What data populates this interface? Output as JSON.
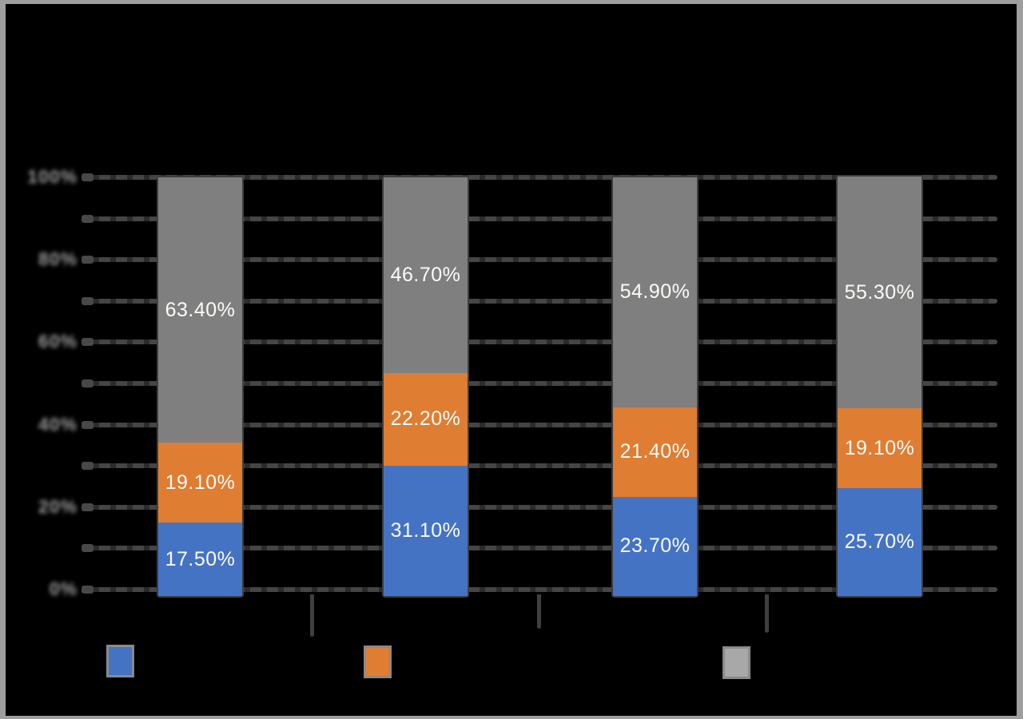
{
  "window": {
    "background": "#000000",
    "frame_border_color": "#9E9E9E"
  },
  "y_axis": {
    "tick_labels": [
      "100%",
      "80%",
      "60%",
      "40%",
      "20%",
      "0%"
    ],
    "min": 0,
    "max": 100,
    "label_unit_pct": 20,
    "gridline_unit_pct": 10,
    "labels_blurred": true
  },
  "x_axis": {
    "category_labels": [
      "",
      "",
      "",
      ""
    ],
    "tick_marks_between_categories": true
  },
  "legend": {
    "position": "bottom",
    "swatch_border_color": "#8A8A8A",
    "entries": [
      {
        "swatch_color": "#4573C4",
        "label": ""
      },
      {
        "swatch_color": "#DF7D33",
        "label": ""
      },
      {
        "swatch_color": "#A8A8A8",
        "label": ""
      }
    ]
  },
  "chart_data": {
    "type": "bar",
    "subtype": "stacked-100",
    "orientation": "vertical",
    "title": "",
    "categories": [
      "",
      "",
      "",
      ""
    ],
    "series": [
      {
        "name": "",
        "color": "#4573C4",
        "values": [
          17.5,
          31.1,
          23.7,
          25.7
        ],
        "labels": [
          "17.50%",
          "31.10%",
          "23.70%",
          "25.70%"
        ]
      },
      {
        "name": "",
        "color": "#DF7D33",
        "values": [
          19.1,
          22.2,
          21.4,
          19.1
        ],
        "labels": [
          "19.10%",
          "22.20%",
          "21.40%",
          "19.10%"
        ]
      },
      {
        "name": "",
        "color": "#7F7F7F",
        "values": [
          63.4,
          46.7,
          54.9,
          55.3
        ],
        "labels": [
          "63.40%",
          "46.70%",
          "54.90%",
          "55.30%"
        ]
      }
    ],
    "ylim": [
      0,
      100
    ],
    "grid": true,
    "legend_position": "bottom",
    "data_label_color": "#FFFFFF"
  },
  "style": {
    "gridline_color": "#454545",
    "gridline_dash_color": "#2B2B2B",
    "axis_tick_color": "#3F3F3F",
    "axis_label_color": "#9A9A9A",
    "bar_outline_color": "#3E3E3E"
  }
}
